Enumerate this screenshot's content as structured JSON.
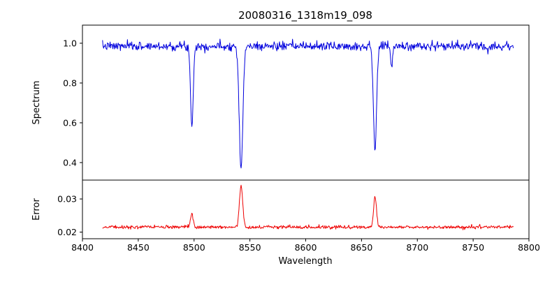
{
  "title": "20080316_1318m19_098",
  "chart_data": {
    "type": "line",
    "title": "20080316_1318m19_098",
    "xlabel": "Wavelength",
    "xlim": [
      8400,
      8800
    ],
    "x_ticks": [
      8400,
      8450,
      8500,
      8550,
      8600,
      8650,
      8700,
      8750,
      8800
    ],
    "x_data_range": [
      8418,
      8786
    ],
    "n_points": 760,
    "seed": 7,
    "legend": "none",
    "grid": false,
    "panels": [
      {
        "name": "spectrum",
        "ylabel": "Spectrum",
        "ylim": [
          0.312,
          1.091
        ],
        "y_ticks": [
          0.4,
          0.6,
          0.8,
          1.0
        ],
        "y_tick_labels": [
          "0.4",
          "0.6",
          "0.8",
          "1.0"
        ],
        "series": {
          "name": "spectrum-flux",
          "color": "#0000dd",
          "continuum": 0.985,
          "noise_sigma": 0.011,
          "absorption_lines": [
            {
              "center": 8498.0,
              "depth": 0.4,
              "sigma": 1.2
            },
            {
              "center": 8542.1,
              "depth": 0.615,
              "sigma": 1.6
            },
            {
              "center": 8662.1,
              "depth": 0.52,
              "sigma": 1.4
            },
            {
              "center": 8677.0,
              "depth": 0.1,
              "sigma": 0.9
            }
          ]
        }
      },
      {
        "name": "error",
        "ylabel": "Error",
        "ylim": [
          0.018,
          0.0357
        ],
        "y_ticks": [
          0.02,
          0.03
        ],
        "y_tick_labels": [
          "0.02",
          "0.03"
        ],
        "series": {
          "name": "error-curve",
          "color": "#ee0000",
          "baseline": 0.0215,
          "noise_sigma": 0.00025,
          "peaks": [
            {
              "center": 8498.0,
              "amp": 0.004,
              "sigma": 1.2
            },
            {
              "center": 8542.1,
              "amp": 0.0125,
              "sigma": 1.5
            },
            {
              "center": 8662.1,
              "amp": 0.0092,
              "sigma": 1.3
            }
          ]
        }
      }
    ]
  }
}
